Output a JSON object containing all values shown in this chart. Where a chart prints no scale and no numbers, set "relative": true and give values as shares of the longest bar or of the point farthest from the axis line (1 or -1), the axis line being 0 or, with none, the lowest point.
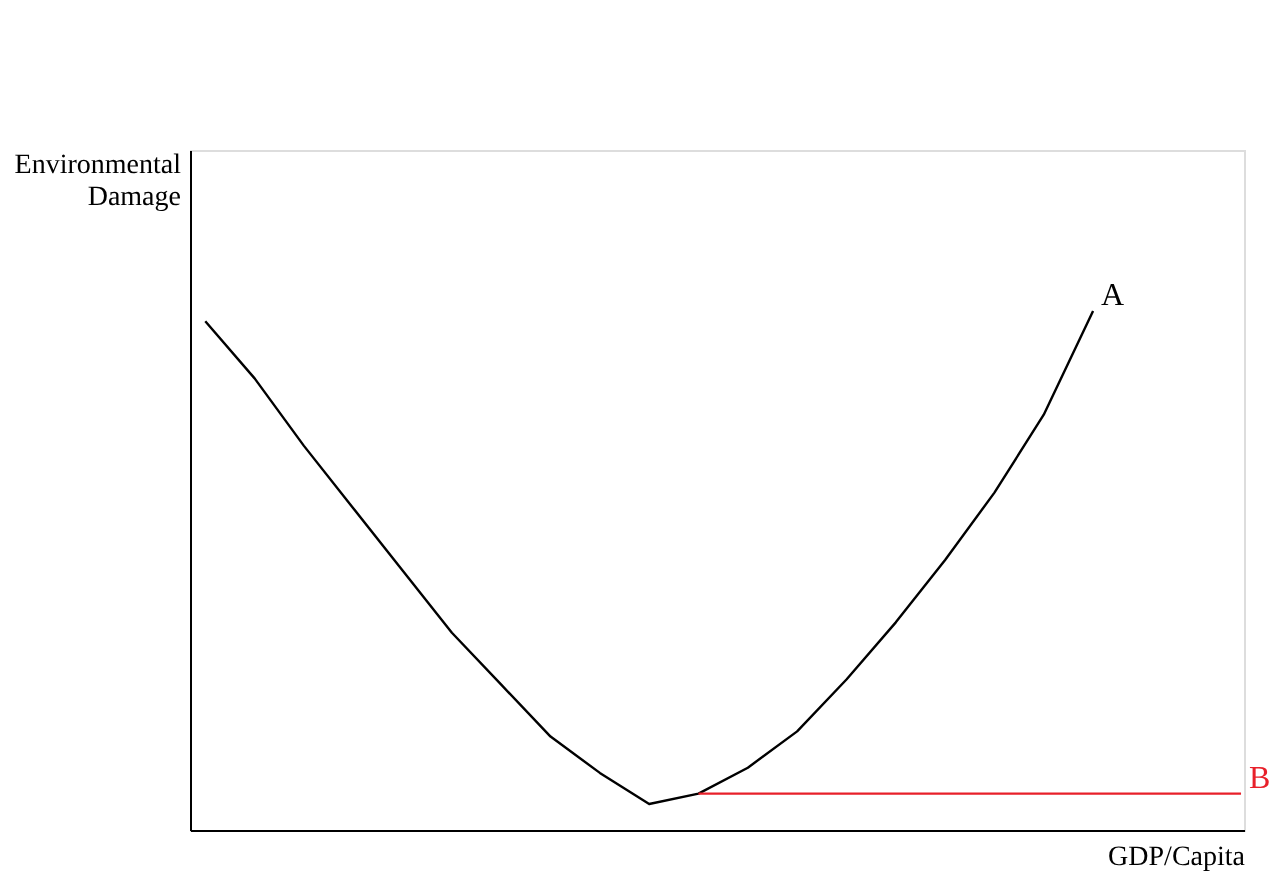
{
  "chart_data": {
    "type": "line",
    "relative": true,
    "xlabel": "GDP/Capita",
    "ylabel": "Environmental Damage",
    "categories": [
      null,
      null,
      null,
      null,
      null,
      null,
      null,
      null,
      null,
      null,
      null,
      null,
      null,
      null,
      null,
      null,
      null,
      null,
      null,
      null,
      null,
      null
    ],
    "series": [
      {
        "name": "A",
        "color": "#000000",
        "values": [
          0.98,
          0.87,
          0.74,
          0.62,
          0.5,
          0.38,
          0.28,
          0.18,
          0.11,
          0.05,
          0.07,
          0.12,
          0.19,
          0.29,
          0.4,
          0.52,
          0.65,
          0.8,
          1.0,
          null,
          null,
          null
        ]
      },
      {
        "name": "B",
        "color": "#e8202a",
        "values": [
          null,
          null,
          null,
          null,
          null,
          null,
          null,
          null,
          null,
          null,
          0.07,
          0.07,
          0.07,
          0.07,
          0.07,
          0.07,
          0.07,
          0.07,
          0.07,
          0.07,
          0.07,
          0.07
        ]
      }
    ],
    "grid": false,
    "marker": "none",
    "line_style": "solid",
    "tick_labels": false
  }
}
